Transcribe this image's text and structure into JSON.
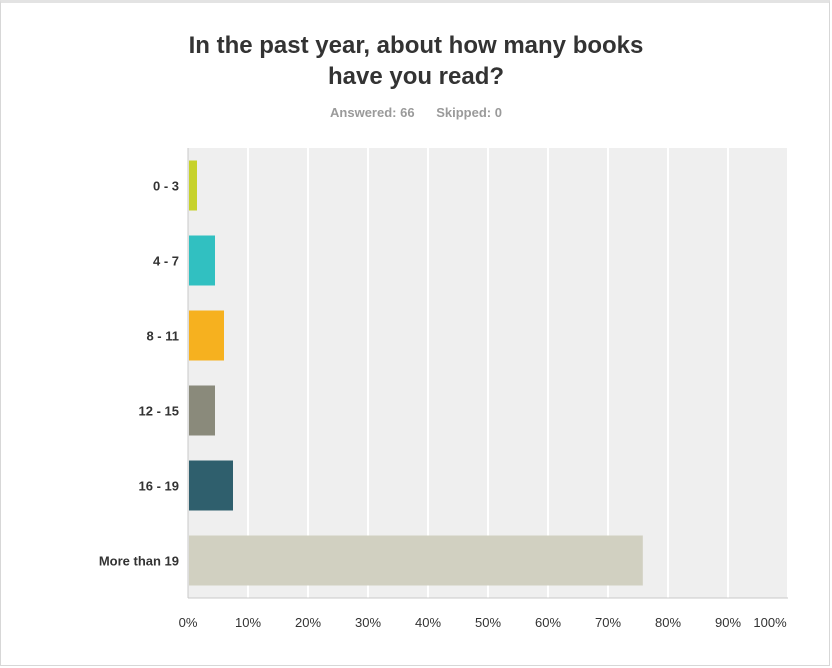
{
  "header": {
    "title_line1": "In the past year, about how many books",
    "title_line2": "have you read?",
    "answered": "Answered: 66",
    "skipped": "Skipped: 0"
  },
  "chart_data": {
    "type": "bar",
    "orientation": "horizontal",
    "categories": [
      "0 - 3",
      "4 - 7",
      "8 - 11",
      "12 - 15",
      "16 - 19",
      "More than 19"
    ],
    "values": [
      1.5,
      4.5,
      6.0,
      4.5,
      7.5,
      75.8
    ],
    "colors": [
      "#c7d22b",
      "#31c0c1",
      "#f6b11f",
      "#8a8a7b",
      "#2f5f6d",
      "#d1d0c1"
    ],
    "xlim": [
      0,
      100
    ],
    "x_ticks": [
      "0%",
      "10%",
      "20%",
      "30%",
      "40%",
      "50%",
      "60%",
      "70%",
      "80%",
      "90%",
      "100%"
    ],
    "grid": true,
    "background": "#efefef"
  }
}
